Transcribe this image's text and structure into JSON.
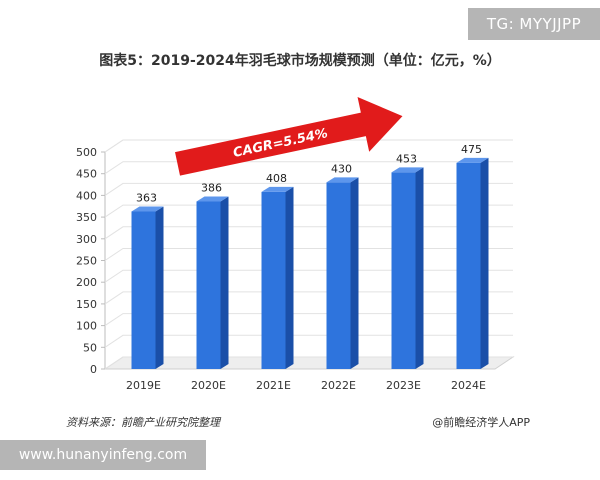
{
  "watermarks": {
    "top_right": "TG: MYYJJPP",
    "bottom_left": "www.hunanyinfeng.com"
  },
  "footer": {
    "source": "资料来源：前瞻产业研究院整理",
    "credit": "@前瞻经济学人APP"
  },
  "annotation": {
    "cagr": "CAGR=5.54%"
  },
  "colors": {
    "bar": "#2e74dd",
    "bar_side": "#1a4fa8",
    "bar_top": "#5d96ec",
    "arrow": "#e11b1b"
  },
  "chart_data": {
    "type": "bar",
    "title": "图表5：2019-2024年羽毛球市场规模预测（单位：亿元，%）",
    "xlabel": "",
    "ylabel": "",
    "categories": [
      "2019E",
      "2020E",
      "2021E",
      "2022E",
      "2023E",
      "2024E"
    ],
    "values": [
      363,
      386,
      408,
      430,
      453,
      475
    ],
    "ylim": [
      0,
      500
    ],
    "yticks": [
      0,
      50,
      100,
      150,
      200,
      250,
      300,
      350,
      400,
      450,
      500
    ],
    "grid": true,
    "legend": "none"
  }
}
